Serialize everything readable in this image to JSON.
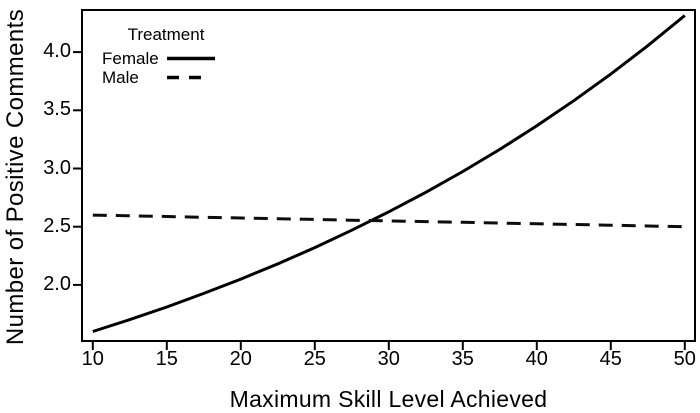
{
  "figure": {
    "background": "#ffffff",
    "foreground": "#000000"
  },
  "chart_data": {
    "type": "line",
    "title": "",
    "xlabel": "Maximum Skill Level Achieved",
    "ylabel": "Number of Positive Comments",
    "xlim": [
      9.2,
      50.76
    ],
    "ylim": [
      1.51,
      4.37
    ],
    "x_ticks": [
      "10",
      "15",
      "20",
      "25",
      "30",
      "35",
      "40",
      "45",
      "50"
    ],
    "y_ticks": [
      "2.0",
      "2.5",
      "3.0",
      "3.5",
      "4.0"
    ],
    "grid": false,
    "frame": true,
    "legend": {
      "title": "Treatment",
      "position": "top-left"
    },
    "x": [
      10,
      12.5,
      15,
      17.5,
      20,
      22.5,
      25,
      27.5,
      30,
      32.5,
      35,
      37.5,
      40,
      42.5,
      45,
      47.5,
      50
    ],
    "series": [
      {
        "name": "Female",
        "line_style": "solid",
        "color": "#000000",
        "values": [
          1.6,
          1.702,
          1.811,
          1.927,
          2.05,
          2.181,
          2.321,
          2.47,
          2.628,
          2.796,
          2.974,
          3.164,
          3.367,
          3.582,
          3.811,
          4.055,
          4.314
        ]
      },
      {
        "name": "Male",
        "line_style": "dashed",
        "color": "#0d0d0d",
        "values": [
          2.6,
          2.594,
          2.588,
          2.581,
          2.575,
          2.569,
          2.563,
          2.556,
          2.55,
          2.544,
          2.538,
          2.531,
          2.525,
          2.519,
          2.513,
          2.506,
          2.5
        ]
      }
    ],
    "annotations": {
      "crossing_point_x": 28.9,
      "crossing_point_y": 2.56
    }
  }
}
